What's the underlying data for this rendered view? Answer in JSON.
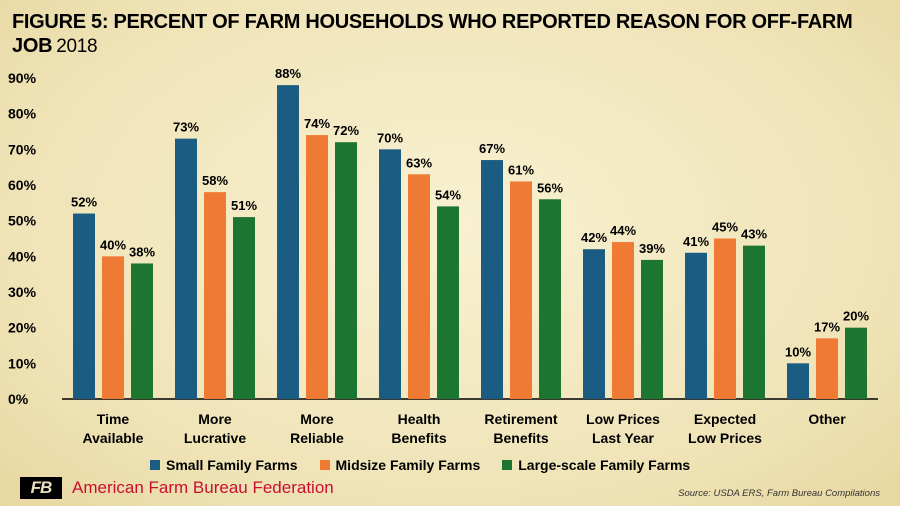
{
  "header": {
    "title": "FIGURE 5: PERCENT OF FARM HOUSEHOLDS WHO REPORTED REASON FOR OFF-FARM JOB",
    "year": "2018"
  },
  "footer": {
    "logo_text": "FB",
    "org_name": "American Farm Bureau Federation",
    "source": "Source: USDA ERS, Farm Bureau Compilations"
  },
  "colors": {
    "small": "#1b5d82",
    "midsize": "#ef7a33",
    "large": "#1c7530",
    "brand_red": "#c8102e"
  },
  "chart_data": {
    "type": "bar",
    "categories": [
      [
        "Time",
        "Available"
      ],
      [
        "More",
        "Lucrative"
      ],
      [
        "More",
        "Reliable"
      ],
      [
        "Health",
        "Benefits"
      ],
      [
        "Retirement",
        "Benefits"
      ],
      [
        "Low Prices",
        "Last Year"
      ],
      [
        "Expected",
        "Low Prices"
      ],
      [
        "Other"
      ]
    ],
    "series": [
      {
        "name": "Small Family Farms",
        "color": "#1b5d82",
        "values": [
          52,
          73,
          88,
          70,
          67,
          42,
          41,
          10
        ]
      },
      {
        "name": "Midsize Family Farms",
        "color": "#ef7a33",
        "values": [
          40,
          58,
          74,
          63,
          61,
          44,
          45,
          17
        ]
      },
      {
        "name": "Large-scale Family Farms",
        "color": "#1c7530",
        "values": [
          38,
          51,
          72,
          54,
          56,
          39,
          43,
          20
        ]
      }
    ],
    "ylim": [
      0,
      90
    ],
    "yticks": [
      "0%",
      "10%",
      "20%",
      "30%",
      "40%",
      "50%",
      "60%",
      "70%",
      "80%",
      "90%"
    ],
    "value_suffix": "%",
    "legend_position": "bottom",
    "grid": false
  }
}
